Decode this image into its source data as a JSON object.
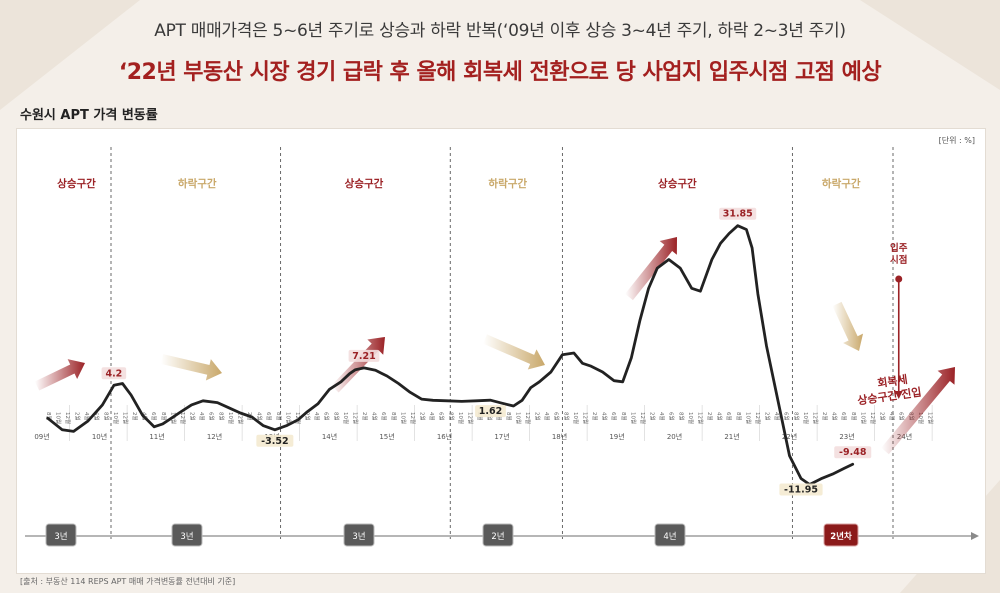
{
  "header": {
    "subtitle": "APT 매매가격은 5~6년 주기로 상승과 하락 반복(‘09년 이후 상승 3~4년 주기, 하락 2~3년 주기)",
    "title": "‘22년 부동산 시장 경기 급락 후 올해 회복세 전환으로 당 사업지 입주시점 고점 예상"
  },
  "unit": "[단위 : %]",
  "source": "[출처 : 부동산 114 REPS APT 매매 가격변동률 전년대비 기준]",
  "colors": {
    "up": "#9b2226",
    "down": "#c9a86a",
    "line": "#222222",
    "badge": "#5a5a5a",
    "badge_active": "#8b1a1a"
  },
  "chart_data": {
    "type": "line",
    "title": "수원시 APT 가격 변동률",
    "xlabel": "",
    "ylabel": "",
    "unit": "%",
    "ylim": [
      -14,
      34
    ],
    "years": [
      "09년",
      "10년",
      "11년",
      "12년",
      "13년",
      "14년",
      "15년",
      "16년",
      "17년",
      "18년",
      "19년",
      "20년",
      "21년",
      "22년",
      "23년",
      "24년"
    ],
    "months": [
      "10월",
      "12월",
      "2월",
      "4월",
      "6월",
      "8월",
      "10월",
      "12월"
    ],
    "x": [
      2009.6,
      2009.85,
      2010.05,
      2010.3,
      2010.55,
      2010.75,
      2010.9,
      2011.05,
      2011.25,
      2011.45,
      2011.6,
      2011.75,
      2011.9,
      2012.1,
      2012.3,
      2012.55,
      2012.75,
      2012.95,
      2013.15,
      2013.35,
      2013.55,
      2013.75,
      2013.95,
      2014.1,
      2014.3,
      2014.5,
      2014.7,
      2014.85,
      2014.95,
      2015.1,
      2015.3,
      2015.5,
      2015.7,
      2015.9,
      2016.1,
      2016.3,
      2016.55,
      2016.8,
      2017.05,
      2017.3,
      2017.5,
      2017.7,
      2017.85,
      2018.0,
      2018.15,
      2018.35,
      2018.55,
      2018.75,
      2018.9,
      2019.05,
      2019.25,
      2019.45,
      2019.6,
      2019.75,
      2019.9,
      2020.05,
      2020.2,
      2020.4,
      2020.6,
      2020.8,
      2020.95,
      2021.15,
      2021.3,
      2021.45,
      2021.6,
      2021.75,
      2021.85,
      2021.95,
      2022.1,
      2022.3,
      2022.5,
      2022.7,
      2022.85,
      2022.95,
      2023.05,
      2023.25,
      2023.45,
      2023.6
    ],
    "y": [
      -1.5,
      -3.5,
      -3.8,
      -2,
      0.8,
      4.2,
      4.5,
      2.5,
      -1,
      -3,
      -2.5,
      -1.5,
      -0.5,
      0.8,
      1.5,
      1.2,
      0.3,
      -0.6,
      -1.3,
      -2.8,
      -3.52,
      -2.8,
      -1.8,
      -0.5,
      1,
      3.5,
      4.8,
      6.2,
      6.9,
      7.21,
      6.8,
      5.8,
      4.5,
      3,
      1.8,
      1.6,
      1.5,
      1.4,
      1.5,
      1.62,
      1.1,
      0.6,
      1.6,
      3.8,
      4.8,
      6.5,
      9.5,
      9.8,
      8,
      7.5,
      6.5,
      5,
      4.8,
      9,
      15.5,
      21,
      24.5,
      26,
      24.5,
      21,
      20.5,
      26,
      28.8,
      30.5,
      31.85,
      31.2,
      28,
      20,
      11,
      1.5,
      -8,
      -11.95,
      -13,
      -12.5,
      -12,
      -11.2,
      -10.2,
      -9.48
    ],
    "labels": [
      {
        "text": "4.2",
        "x": 2010.75,
        "y": 4.2
      },
      {
        "text": "-3.52",
        "x": 2013.55,
        "y": -3.52
      },
      {
        "text": "7.21",
        "x": 2015.1,
        "y": 7.21
      },
      {
        "text": "1.62",
        "x": 2017.3,
        "y": 1.62
      },
      {
        "text": "31.85",
        "x": 2021.6,
        "y": 31.85
      },
      {
        "text": "-11.95",
        "x": 2022.7,
        "y": -11.95
      },
      {
        "text": "-9.48",
        "x": 2023.6,
        "y": -9.48
      }
    ],
    "phases": [
      {
        "label": "상승구간",
        "kind": "up"
      },
      {
        "label": "하락구간",
        "kind": "down"
      },
      {
        "label": "상승구간",
        "kind": "up"
      },
      {
        "label": "하락구간",
        "kind": "down"
      },
      {
        "label": "상승구간",
        "kind": "up"
      },
      {
        "label": "하락구간",
        "kind": "down"
      }
    ],
    "durations": [
      "3년",
      "3년",
      "3년",
      "2년",
      "4년",
      "2년차"
    ],
    "annotations": {
      "move_in": "입주\n시점",
      "recovery": "회복세\n상승구간 진입"
    },
    "grid": false
  }
}
